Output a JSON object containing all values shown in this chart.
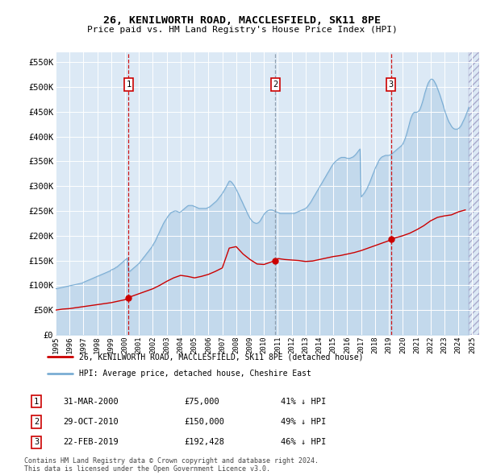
{
  "title": "26, KENILWORTH ROAD, MACCLESFIELD, SK11 8PE",
  "subtitle": "Price paid vs. HM Land Registry's House Price Index (HPI)",
  "ylabel_ticks": [
    0,
    50000,
    100000,
    150000,
    200000,
    250000,
    300000,
    350000,
    400000,
    450000,
    500000,
    550000
  ],
  "ytick_labels": [
    "£0",
    "£50K",
    "£100K",
    "£150K",
    "£200K",
    "£250K",
    "£300K",
    "£350K",
    "£400K",
    "£450K",
    "£500K",
    "£550K"
  ],
  "xlim": [
    1995.0,
    2025.5
  ],
  "ylim": [
    0,
    570000
  ],
  "sale_dates": [
    2000.25,
    2010.83,
    2019.14
  ],
  "sale_prices": [
    75000,
    150000,
    192428
  ],
  "sale_labels": [
    "1",
    "2",
    "3"
  ],
  "sale_date_strs": [
    "31-MAR-2000",
    "29-OCT-2010",
    "22-FEB-2019"
  ],
  "sale_price_strs": [
    "£75,000",
    "£150,000",
    "£192,428"
  ],
  "sale_hpi_strs": [
    "41% ↓ HPI",
    "49% ↓ HPI",
    "46% ↓ HPI"
  ],
  "hpi_color": "#7aadd4",
  "sale_line_color": "#cc0000",
  "vline_colors": [
    "#cc0000",
    "#8899aa",
    "#cc0000"
  ],
  "background_color": "#dce9f5",
  "legend_label_red": "26, KENILWORTH ROAD, MACCLESFIELD, SK11 8PE (detached house)",
  "legend_label_blue": "HPI: Average price, detached house, Cheshire East",
  "footer": "Contains HM Land Registry data © Crown copyright and database right 2024.\nThis data is licensed under the Open Government Licence v3.0.",
  "hpi_x": [
    1995.0,
    1995.08,
    1995.17,
    1995.25,
    1995.33,
    1995.42,
    1995.5,
    1995.58,
    1995.67,
    1995.75,
    1995.83,
    1995.92,
    1996.0,
    1996.08,
    1996.17,
    1996.25,
    1996.33,
    1996.42,
    1996.5,
    1996.58,
    1996.67,
    1996.75,
    1996.83,
    1996.92,
    1997.0,
    1997.08,
    1997.17,
    1997.25,
    1997.33,
    1997.42,
    1997.5,
    1997.58,
    1997.67,
    1997.75,
    1997.83,
    1997.92,
    1998.0,
    1998.08,
    1998.17,
    1998.25,
    1998.33,
    1998.42,
    1998.5,
    1998.58,
    1998.67,
    1998.75,
    1998.83,
    1998.92,
    1999.0,
    1999.08,
    1999.17,
    1999.25,
    1999.33,
    1999.42,
    1999.5,
    1999.58,
    1999.67,
    1999.75,
    1999.83,
    1999.92,
    2000.0,
    2000.08,
    2000.17,
    2000.25,
    2000.33,
    2000.42,
    2000.5,
    2000.58,
    2000.67,
    2000.75,
    2000.83,
    2000.92,
    2001.0,
    2001.08,
    2001.17,
    2001.25,
    2001.33,
    2001.42,
    2001.5,
    2001.58,
    2001.67,
    2001.75,
    2001.83,
    2001.92,
    2002.0,
    2002.08,
    2002.17,
    2002.25,
    2002.33,
    2002.42,
    2002.5,
    2002.58,
    2002.67,
    2002.75,
    2002.83,
    2002.92,
    2003.0,
    2003.08,
    2003.17,
    2003.25,
    2003.33,
    2003.42,
    2003.5,
    2003.58,
    2003.67,
    2003.75,
    2003.83,
    2003.92,
    2004.0,
    2004.08,
    2004.17,
    2004.25,
    2004.33,
    2004.42,
    2004.5,
    2004.58,
    2004.67,
    2004.75,
    2004.83,
    2004.92,
    2005.0,
    2005.08,
    2005.17,
    2005.25,
    2005.33,
    2005.42,
    2005.5,
    2005.58,
    2005.67,
    2005.75,
    2005.83,
    2005.92,
    2006.0,
    2006.08,
    2006.17,
    2006.25,
    2006.33,
    2006.42,
    2006.5,
    2006.58,
    2006.67,
    2006.75,
    2006.83,
    2006.92,
    2007.0,
    2007.08,
    2007.17,
    2007.25,
    2007.33,
    2007.42,
    2007.5,
    2007.58,
    2007.67,
    2007.75,
    2007.83,
    2007.92,
    2008.0,
    2008.08,
    2008.17,
    2008.25,
    2008.33,
    2008.42,
    2008.5,
    2008.58,
    2008.67,
    2008.75,
    2008.83,
    2008.92,
    2009.0,
    2009.08,
    2009.17,
    2009.25,
    2009.33,
    2009.42,
    2009.5,
    2009.58,
    2009.67,
    2009.75,
    2009.83,
    2009.92,
    2010.0,
    2010.08,
    2010.17,
    2010.25,
    2010.33,
    2010.42,
    2010.5,
    2010.58,
    2010.67,
    2010.75,
    2010.83,
    2010.92,
    2011.0,
    2011.08,
    2011.17,
    2011.25,
    2011.33,
    2011.42,
    2011.5,
    2011.58,
    2011.67,
    2011.75,
    2011.83,
    2011.92,
    2012.0,
    2012.08,
    2012.17,
    2012.25,
    2012.33,
    2012.42,
    2012.5,
    2012.58,
    2012.67,
    2012.75,
    2012.83,
    2012.92,
    2013.0,
    2013.08,
    2013.17,
    2013.25,
    2013.33,
    2013.42,
    2013.5,
    2013.58,
    2013.67,
    2013.75,
    2013.83,
    2013.92,
    2014.0,
    2014.08,
    2014.17,
    2014.25,
    2014.33,
    2014.42,
    2014.5,
    2014.58,
    2014.67,
    2014.75,
    2014.83,
    2014.92,
    2015.0,
    2015.08,
    2015.17,
    2015.25,
    2015.33,
    2015.42,
    2015.5,
    2015.58,
    2015.67,
    2015.75,
    2015.83,
    2015.92,
    2016.0,
    2016.08,
    2016.17,
    2016.25,
    2016.33,
    2016.42,
    2016.5,
    2016.58,
    2016.67,
    2016.75,
    2016.83,
    2016.92,
    2017.0,
    2017.08,
    2017.17,
    2017.25,
    2017.33,
    2017.42,
    2017.5,
    2017.58,
    2017.67,
    2017.75,
    2017.83,
    2017.92,
    2018.0,
    2018.08,
    2018.17,
    2018.25,
    2018.33,
    2018.42,
    2018.5,
    2018.58,
    2018.67,
    2018.75,
    2018.83,
    2018.92,
    2019.0,
    2019.08,
    2019.17,
    2019.25,
    2019.33,
    2019.42,
    2019.5,
    2019.58,
    2019.67,
    2019.75,
    2019.83,
    2019.92,
    2020.0,
    2020.08,
    2020.17,
    2020.25,
    2020.33,
    2020.42,
    2020.5,
    2020.58,
    2020.67,
    2020.75,
    2020.83,
    2020.92,
    2021.0,
    2021.08,
    2021.17,
    2021.25,
    2021.33,
    2021.42,
    2021.5,
    2021.58,
    2021.67,
    2021.75,
    2021.83,
    2021.92,
    2022.0,
    2022.08,
    2022.17,
    2022.25,
    2022.33,
    2022.42,
    2022.5,
    2022.58,
    2022.67,
    2022.75,
    2022.83,
    2022.92,
    2023.0,
    2023.08,
    2023.17,
    2023.25,
    2023.33,
    2023.42,
    2023.5,
    2023.58,
    2023.67,
    2023.75,
    2023.83,
    2023.92,
    2024.0,
    2024.08,
    2024.17,
    2024.25,
    2024.33,
    2024.42,
    2024.5,
    2024.58,
    2024.67,
    2024.75
  ],
  "hpi_y": [
    93000,
    93500,
    94000,
    94500,
    95000,
    95500,
    96000,
    96500,
    97000,
    97500,
    98000,
    98500,
    99000,
    99500,
    100000,
    100500,
    101000,
    101500,
    102000,
    102500,
    103000,
    103500,
    104000,
    104500,
    106000,
    107000,
    108000,
    109000,
    110000,
    111000,
    112000,
    113000,
    114000,
    115000,
    116000,
    117000,
    118000,
    119000,
    120000,
    121000,
    122000,
    123000,
    124000,
    125000,
    126000,
    127000,
    128000,
    129000,
    131000,
    132000,
    133000,
    134000,
    136000,
    137000,
    139000,
    141000,
    143000,
    145000,
    147000,
    149000,
    151000,
    153000,
    155000,
    127000,
    128000,
    130000,
    132000,
    134000,
    136000,
    138000,
    140000,
    142000,
    144000,
    147000,
    150000,
    153000,
    156000,
    159000,
    162000,
    165000,
    168000,
    171000,
    174000,
    177000,
    181000,
    185000,
    189000,
    194000,
    199000,
    204000,
    209000,
    214000,
    219000,
    224000,
    228000,
    232000,
    235000,
    239000,
    242000,
    245000,
    247000,
    248000,
    249000,
    250000,
    250000,
    249000,
    248000,
    247000,
    248000,
    250000,
    252000,
    254000,
    256000,
    258000,
    260000,
    261000,
    261000,
    261000,
    261000,
    260000,
    259000,
    258000,
    257000,
    256000,
    255000,
    255000,
    255000,
    255000,
    255000,
    255000,
    255000,
    256000,
    257000,
    258000,
    260000,
    262000,
    264000,
    266000,
    268000,
    270000,
    273000,
    276000,
    279000,
    282000,
    285000,
    289000,
    293000,
    297000,
    301000,
    306000,
    310000,
    310000,
    308000,
    305000,
    302000,
    298000,
    294000,
    289000,
    284000,
    279000,
    274000,
    269000,
    264000,
    259000,
    254000,
    249000,
    244000,
    239000,
    235000,
    232000,
    229000,
    227000,
    226000,
    225000,
    225000,
    226000,
    228000,
    231000,
    235000,
    239000,
    243000,
    246000,
    248000,
    250000,
    251000,
    252000,
    252000,
    252000,
    251000,
    250000,
    249000,
    248000,
    247000,
    246000,
    245000,
    245000,
    245000,
    245000,
    245000,
    245000,
    245000,
    245000,
    245000,
    245000,
    245000,
    245000,
    245000,
    246000,
    247000,
    248000,
    249000,
    250000,
    251000,
    252000,
    253000,
    254000,
    255000,
    257000,
    260000,
    263000,
    266000,
    270000,
    274000,
    278000,
    282000,
    286000,
    290000,
    294000,
    298000,
    302000,
    306000,
    310000,
    314000,
    318000,
    322000,
    326000,
    330000,
    334000,
    338000,
    342000,
    345000,
    348000,
    350000,
    352000,
    354000,
    356000,
    357000,
    358000,
    358000,
    358000,
    358000,
    357000,
    356000,
    356000,
    356000,
    357000,
    358000,
    359000,
    361000,
    363000,
    366000,
    369000,
    372000,
    375000,
    278000,
    281000,
    284000,
    287000,
    291000,
    295000,
    300000,
    305000,
    311000,
    317000,
    323000,
    329000,
    335000,
    340000,
    345000,
    350000,
    354000,
    357000,
    359000,
    360000,
    361000,
    362000,
    362000,
    362000,
    362000,
    363000,
    364000,
    366000,
    368000,
    370000,
    372000,
    374000,
    376000,
    378000,
    380000,
    382000,
    385000,
    390000,
    396000,
    403000,
    411000,
    420000,
    429000,
    437000,
    443000,
    447000,
    449000,
    449000,
    449000,
    450000,
    452000,
    456000,
    462000,
    470000,
    478000,
    487000,
    495000,
    502000,
    508000,
    512000,
    515000,
    516000,
    515000,
    512000,
    508000,
    503000,
    497000,
    491000,
    484000,
    477000,
    470000,
    462000,
    454000,
    447000,
    440000,
    434000,
    429000,
    425000,
    421000,
    418000,
    416000,
    415000,
    415000,
    415000,
    416000,
    418000,
    421000,
    425000,
    430000,
    435000,
    440000,
    446000,
    452000,
    459000
  ],
  "red_x": [
    1995.0,
    1995.5,
    1996.0,
    1996.5,
    1997.0,
    1997.5,
    1998.0,
    1998.5,
    1999.0,
    1999.5,
    2000.0,
    2000.25,
    2000.5,
    2001.0,
    2001.5,
    2002.0,
    2002.5,
    2003.0,
    2003.5,
    2004.0,
    2004.5,
    2005.0,
    2005.5,
    2006.0,
    2006.5,
    2007.0,
    2007.5,
    2008.0,
    2008.5,
    2009.0,
    2009.5,
    2010.0,
    2010.83,
    2011.0,
    2011.5,
    2012.0,
    2012.5,
    2013.0,
    2013.5,
    2014.0,
    2014.5,
    2015.0,
    2015.5,
    2016.0,
    2016.5,
    2017.0,
    2017.5,
    2018.0,
    2018.5,
    2019.0,
    2019.14,
    2019.5,
    2020.0,
    2020.5,
    2021.0,
    2021.5,
    2022.0,
    2022.5,
    2023.0,
    2023.5,
    2024.0,
    2024.5
  ],
  "red_y": [
    50000,
    52000,
    53000,
    55000,
    57000,
    59000,
    61000,
    63000,
    65000,
    68000,
    71000,
    75000,
    78000,
    83000,
    88000,
    93000,
    100000,
    108000,
    115000,
    120000,
    118000,
    115000,
    118000,
    122000,
    128000,
    135000,
    175000,
    178000,
    163000,
    152000,
    143000,
    142000,
    150000,
    154000,
    152000,
    151000,
    150000,
    148000,
    149000,
    152000,
    155000,
    158000,
    160000,
    163000,
    166000,
    170000,
    175000,
    180000,
    185000,
    190000,
    192428,
    196000,
    200000,
    205000,
    212000,
    220000,
    230000,
    237000,
    240000,
    242000,
    248000,
    252000
  ]
}
